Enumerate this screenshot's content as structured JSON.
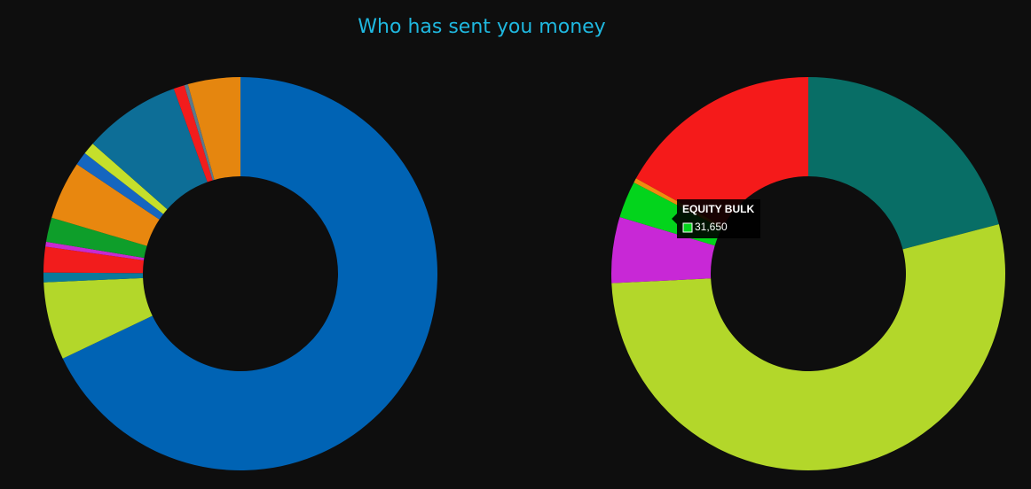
{
  "title": "Who has sent you money",
  "chart_data": [
    {
      "type": "pie",
      "values": [
        67.9,
        6.4,
        0.8,
        2.1,
        0.4,
        2.0,
        4.8,
        1.1,
        1.0,
        8.0,
        0.9,
        0.3,
        4.3
      ],
      "colors": [
        "#0063b4",
        "#b3d72a",
        "#0a7a9c",
        "#f21c1c",
        "#c82ad0",
        "#0e9e2a",
        "#e8870f",
        "#1566c0",
        "#c5df2b",
        "#0d6e97",
        "#f21c1c",
        "#5a7a8c",
        "#e5860f"
      ]
    },
    {
      "type": "pie",
      "categories": [
        null,
        null,
        null,
        "EQUITY BULK",
        null,
        null
      ],
      "values": [
        219000,
        557000,
        56600,
        31650,
        4000,
        177000
      ],
      "value_labels": [
        null,
        null,
        null,
        "31,650",
        null,
        null
      ],
      "colors": [
        "#086e66",
        "#b3d72a",
        "#c828d6",
        "#03d41c",
        "#f08a0f",
        "#f51a1a"
      ]
    }
  ]
}
